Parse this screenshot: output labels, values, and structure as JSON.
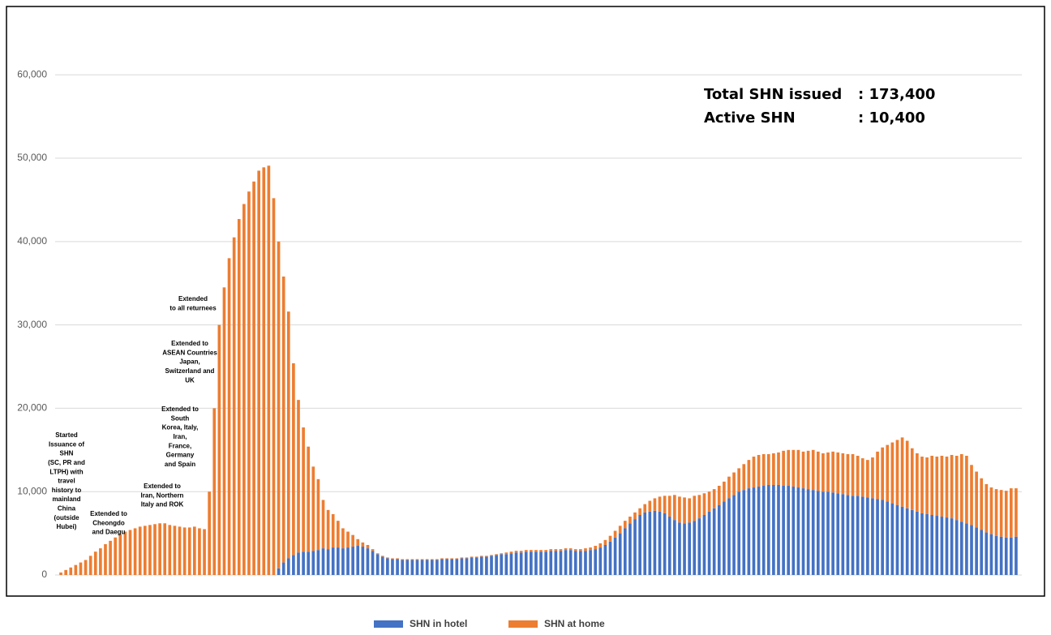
{
  "chart_data": {
    "type": "stacked_bar",
    "stats": [
      {
        "label": "Total SHN issued",
        "text": ": 173,400"
      },
      {
        "label": "Active SHN",
        "text": ": 10,400"
      }
    ],
    "annotations": [
      [
        "Started",
        "Issuance of",
        "SHN",
        "(SC, PR and",
        "LTPH) with",
        "travel",
        "history to",
        "mainland",
        "China",
        "(outside",
        "Hubei)"
      ],
      [
        "Extended to",
        "Cheongdo",
        "and Daegu"
      ],
      [
        "Extended to",
        "Iran, Northern",
        "Italy and ROK"
      ],
      [
        "Extended to",
        "South",
        "Korea, Italy,",
        "Iran,",
        "France,",
        "Germany",
        "and Spain"
      ],
      [
        "Extended to",
        "ASEAN Countries",
        "Japan,",
        "Switzerland and",
        "UK"
      ],
      [
        "Extended",
        "to all returnees"
      ]
    ],
    "ylim": [
      0,
      68000
    ],
    "yticks": [
      0,
      {
        "value": 10000,
        "label": "10,000"
      },
      {
        "value": 20000,
        "label": "20,000"
      },
      {
        "value": 30000,
        "label": "30,000"
      },
      {
        "value": 40000,
        "label": "40,000"
      },
      {
        "value": 50000,
        "label": "50,000"
      },
      {
        "value": 60000,
        "label": "60,000"
      }
    ],
    "grid": true,
    "series": [
      {
        "name": "SHN in hotel",
        "color": "#4472c4",
        "values": [
          0,
          0,
          0,
          0,
          0,
          0,
          0,
          0,
          0,
          0,
          0,
          0,
          0,
          0,
          0,
          0,
          0,
          0,
          0,
          0,
          0,
          0,
          0,
          0,
          0,
          0,
          0,
          0,
          0,
          0,
          0,
          0,
          0,
          0,
          0,
          0,
          0,
          0,
          0,
          0,
          0,
          0,
          0,
          0,
          800,
          1500,
          2000,
          2400,
          2700,
          2800,
          2800,
          2900,
          3000,
          3200,
          3100,
          3300,
          3300,
          3200,
          3300,
          3400,
          3500,
          3400,
          3200,
          2900,
          2500,
          2200,
          2000,
          1900,
          1900,
          1800,
          1800,
          1800,
          1800,
          1800,
          1800,
          1800,
          1800,
          1900,
          1900,
          1900,
          1900,
          2000,
          2000,
          2100,
          2100,
          2200,
          2200,
          2300,
          2400,
          2500,
          2500,
          2600,
          2700,
          2700,
          2800,
          2800,
          2800,
          2800,
          2800,
          2900,
          2900,
          2900,
          3000,
          3000,
          2900,
          2900,
          2900,
          3000,
          3100,
          3300,
          3600,
          4000,
          4500,
          5000,
          5600,
          6200,
          6700,
          7200,
          7500,
          7600,
          7700,
          7600,
          7400,
          7000,
          6600,
          6300,
          6200,
          6300,
          6500,
          6800,
          7200,
          7600,
          8000,
          8400,
          8800,
          9200,
          9600,
          10000,
          10200,
          10400,
          10500,
          10600,
          10700,
          10800,
          10800,
          10800,
          10700,
          10700,
          10600,
          10500,
          10400,
          10300,
          10200,
          10100,
          10000,
          10000,
          9900,
          9800,
          9700,
          9600,
          9500,
          9500,
          9400,
          9300,
          9200,
          9100,
          9000,
          8800,
          8600,
          8400,
          8200,
          8000,
          7800,
          7600,
          7400,
          7300,
          7200,
          7100,
          7000,
          6900,
          6800,
          6600,
          6400,
          6200,
          6000,
          5700,
          5400,
          5100,
          4900,
          4700,
          4600,
          4500,
          4500,
          4600
        ]
      },
      {
        "name": "SHN at home",
        "color": "#ed7d31",
        "values": [
          300,
          600,
          900,
          1200,
          1500,
          1800,
          2300,
          2800,
          3200,
          3700,
          4100,
          4500,
          4900,
          5200,
          5400,
          5600,
          5800,
          5900,
          6000,
          6100,
          6200,
          6200,
          6000,
          5900,
          5800,
          5700,
          5700,
          5800,
          5600,
          5500,
          10000,
          20000,
          30000,
          34500,
          38000,
          40500,
          42700,
          44500,
          46000,
          47200,
          48500,
          48900,
          49100,
          45200,
          39200,
          34300,
          29600,
          23000,
          18300,
          14900,
          12600,
          10100,
          8500,
          5800,
          4700,
          4000,
          3200,
          2400,
          1900,
          1400,
          800,
          500,
          400,
          200,
          100,
          100,
          100,
          100,
          100,
          100,
          100,
          100,
          100,
          100,
          100,
          100,
          100,
          100,
          100,
          100,
          100,
          100,
          100,
          100,
          100,
          100,
          100,
          100,
          100,
          100,
          200,
          200,
          200,
          200,
          200,
          200,
          200,
          200,
          200,
          200,
          200,
          200,
          200,
          200,
          200,
          200,
          300,
          300,
          400,
          500,
          600,
          700,
          800,
          900,
          900,
          800,
          800,
          800,
          1000,
          1300,
          1500,
          1800,
          2100,
          2500,
          3000,
          3100,
          3100,
          2900,
          3000,
          2800,
          2600,
          2400,
          2300,
          2300,
          2400,
          2600,
          2700,
          2800,
          3100,
          3400,
          3700,
          3800,
          3800,
          3700,
          3800,
          3900,
          4200,
          4300,
          4400,
          4500,
          4400,
          4600,
          4800,
          4700,
          4600,
          4700,
          4900,
          4900,
          4900,
          4900,
          5000,
          4800,
          4600,
          4500,
          4900,
          5700,
          6300,
          6800,
          7300,
          7800,
          8300,
          8100,
          7400,
          7000,
          6800,
          6800,
          7100,
          7100,
          7300,
          7300,
          7600,
          7700,
          8100,
          8100,
          7200,
          6700,
          6200,
          5800,
          5600,
          5600,
          5600,
          5600,
          5900,
          5800
        ]
      }
    ]
  }
}
